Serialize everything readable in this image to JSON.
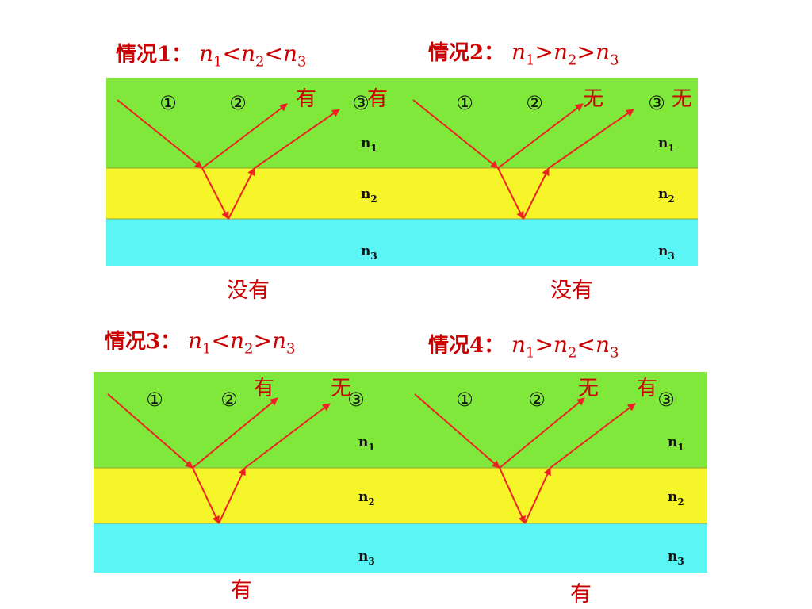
{
  "cases": [
    {
      "label": "情况1：",
      "relation": {
        "n1": "n",
        "s1": "1",
        "op1": "<",
        "n2": "n",
        "s2": "2",
        "op2": "<",
        "n3": "n",
        "s3": "3"
      },
      "ray_labels": [
        "①",
        "②",
        "③"
      ],
      "layer_labels": [
        {
          "n": "n",
          "s": "1"
        },
        {
          "n": "n",
          "s": "2"
        },
        {
          "n": "n",
          "s": "3"
        }
      ],
      "reflection_2": "有",
      "reflection_3": "有",
      "half_wave_loss": "没有"
    },
    {
      "label": "情况2：",
      "relation": {
        "n1": "n",
        "s1": "1",
        "op1": ">",
        "n2": "n",
        "s2": "2",
        "op2": ">",
        "n3": "n",
        "s3": "3"
      },
      "ray_labels": [
        "①",
        "②",
        "③"
      ],
      "layer_labels": [
        {
          "n": "n",
          "s": "1"
        },
        {
          "n": "n",
          "s": "2"
        },
        {
          "n": "n",
          "s": "3"
        }
      ],
      "reflection_2": "无",
      "reflection_3": "无",
      "half_wave_loss": "没有"
    },
    {
      "label": "情况3：",
      "relation": {
        "n1": "n",
        "s1": "1",
        "op1": "<",
        "n2": "n",
        "s2": "2",
        "op2": ">",
        "n3": "n",
        "s3": "3"
      },
      "ray_labels": [
        "①",
        "②",
        "③"
      ],
      "layer_labels": [
        {
          "n": "n",
          "s": "1"
        },
        {
          "n": "n",
          "s": "2"
        },
        {
          "n": "n",
          "s": "3"
        }
      ],
      "reflection_2": "有",
      "reflection_3": "无",
      "half_wave_loss": "有"
    },
    {
      "label": "情况4：",
      "relation": {
        "n1": "n",
        "s1": "1",
        "op1": ">",
        "n2": "n",
        "s2": "2",
        "op2": "<",
        "n3": "n",
        "s3": "3"
      },
      "ray_labels": [
        "①",
        "②",
        "③"
      ],
      "layer_labels": [
        {
          "n": "n",
          "s": "1"
        },
        {
          "n": "n",
          "s": "2"
        },
        {
          "n": "n",
          "s": "3"
        }
      ],
      "reflection_2": "无",
      "reflection_3": "有",
      "half_wave_loss": "有"
    }
  ],
  "colors": {
    "layer1": "#7fe83a",
    "layer2": "#f5f52a",
    "layer3": "#5cf5f5",
    "ray": "#ee2222",
    "text_red": "#cc0000",
    "text_dark": "#111111"
  }
}
